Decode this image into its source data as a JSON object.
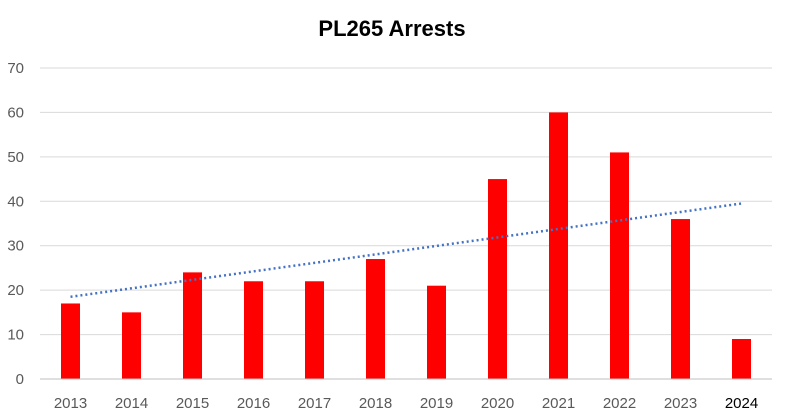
{
  "chart_data": {
    "type": "bar",
    "title": "PL265 Arrests",
    "xlabel": "",
    "ylabel": "",
    "categories": [
      "2013",
      "2014",
      "2015",
      "2016",
      "2017",
      "2018",
      "2019",
      "2020",
      "2021",
      "2022",
      "2023",
      "2024"
    ],
    "series": [
      {
        "name": "Arrests",
        "values": [
          17,
          15,
          24,
          22,
          22,
          27,
          21,
          45,
          60,
          51,
          36,
          9
        ]
      }
    ],
    "ylim": [
      0,
      70
    ],
    "yticks": [
      0,
      10,
      20,
      30,
      40,
      50,
      60,
      70
    ],
    "grid": true,
    "legend": "none",
    "trendline": {
      "type": "linear",
      "style": "dotted",
      "start": 18.5,
      "end": 39.5
    },
    "colors": {
      "bar": "#ff0000",
      "trend": "#4472c4",
      "grid": "#d9d9d9",
      "axis": "#bfbfbf"
    }
  }
}
